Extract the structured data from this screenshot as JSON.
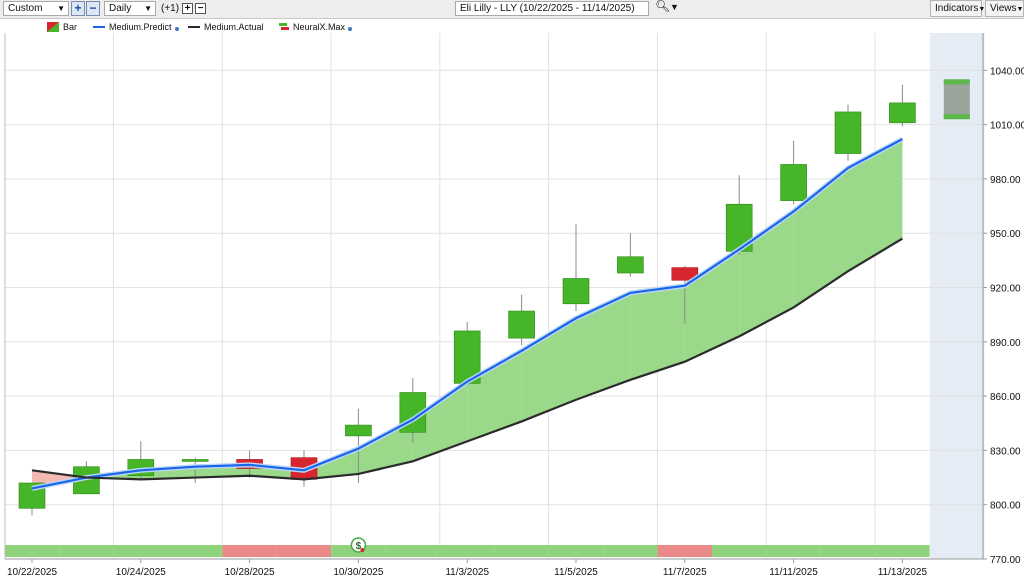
{
  "toolbar": {
    "range_select": "Custom",
    "interval_select": "Daily",
    "offset_label": "(+1)",
    "symbol_field": "Eli Lilly - LLY (10/22/2025 - 11/14/2025)",
    "indicators_label": "Indicators",
    "views_label": "Views",
    "zoom_in": "+",
    "zoom_out": "−",
    "offset_plus": "+",
    "offset_minus": "−"
  },
  "legend": [
    {
      "label": "Bar",
      "icon": "candle-icon"
    },
    {
      "label": "Medium.Predict",
      "color": "#1a66e8"
    },
    {
      "label": "Medium.Actual",
      "color": "#2b2b2b"
    },
    {
      "label": "NeuralX.Max",
      "icon": "neuralx-icon"
    }
  ],
  "signal_marker": "$",
  "chart_data": {
    "type": "candlestick",
    "title": "",
    "ylim": [
      770,
      1050
    ],
    "y_ticks": [
      770,
      800,
      830,
      860,
      890,
      920,
      950,
      980,
      1010,
      1040
    ],
    "y_tick_labels": [
      "770.00",
      "800.00",
      "830.00",
      "860.00",
      "890.00",
      "920.00",
      "950.00",
      "980.00",
      "1010.00",
      "1040.00"
    ],
    "x_tick_labels": [
      "10/22/2025",
      "10/24/2025",
      "10/28/2025",
      "10/30/2025",
      "11/3/2025",
      "11/5/2025",
      "11/7/2025",
      "11/11/2025",
      "11/13/2025"
    ],
    "dates": [
      "10/22/2025",
      "10/23/2025",
      "10/24/2025",
      "10/27/2025",
      "10/28/2025",
      "10/29/2025",
      "10/30/2025",
      "10/31/2025",
      "11/3/2025",
      "11/4/2025",
      "11/5/2025",
      "11/6/2025",
      "11/7/2025",
      "11/10/2025",
      "11/11/2025",
      "11/12/2025",
      "11/13/2025",
      "11/14/2025"
    ],
    "open": [
      798,
      806,
      816,
      824,
      825,
      826,
      838,
      840,
      867,
      892,
      911,
      928,
      931,
      940,
      968,
      994,
      1011,
      null
    ],
    "high": [
      810,
      824,
      835,
      826,
      830,
      830,
      853,
      870,
      901,
      916,
      955,
      950,
      932,
      982,
      1001,
      1021,
      1032,
      null
    ],
    "low": [
      794,
      806,
      814,
      812,
      815,
      810,
      812,
      834,
      866,
      888,
      907,
      926,
      900,
      938,
      966,
      990,
      1009,
      null
    ],
    "close": [
      812,
      821,
      825,
      825,
      820,
      814,
      844,
      862,
      896,
      907,
      925,
      937,
      924,
      966,
      988,
      1017,
      1022,
      null
    ],
    "forecast_box": {
      "low": 1013,
      "high": 1035
    },
    "series": [
      {
        "name": "Medium.Predict",
        "color": "#1a66e8",
        "values": [
          809,
          815,
          819,
          821,
          822,
          819,
          831,
          847,
          868,
          885,
          903,
          917,
          921,
          941,
          962,
          986,
          1002,
          null
        ]
      },
      {
        "name": "Medium.Actual",
        "color": "#2b2b2b",
        "values": [
          819,
          815,
          814,
          815,
          816,
          814,
          817,
          824,
          835,
          846,
          858,
          869,
          879,
          893,
          909,
          929,
          947,
          null
        ]
      }
    ],
    "neuralx_max": [
      "up",
      "up",
      "up",
      "up",
      "down",
      "down",
      "up",
      "up",
      "up",
      "up",
      "up",
      "up",
      "down",
      "up",
      "up",
      "up",
      "up",
      "none"
    ],
    "signal_index": 6,
    "colors": {
      "up": "#46b528",
      "down": "#d8262f",
      "band_up": "#9ad98a",
      "band_down": "#f3b9b3",
      "strip_up": "#8fd47c",
      "strip_down": "#e98a88",
      "forecast_bg": "#e6ecf6"
    }
  }
}
